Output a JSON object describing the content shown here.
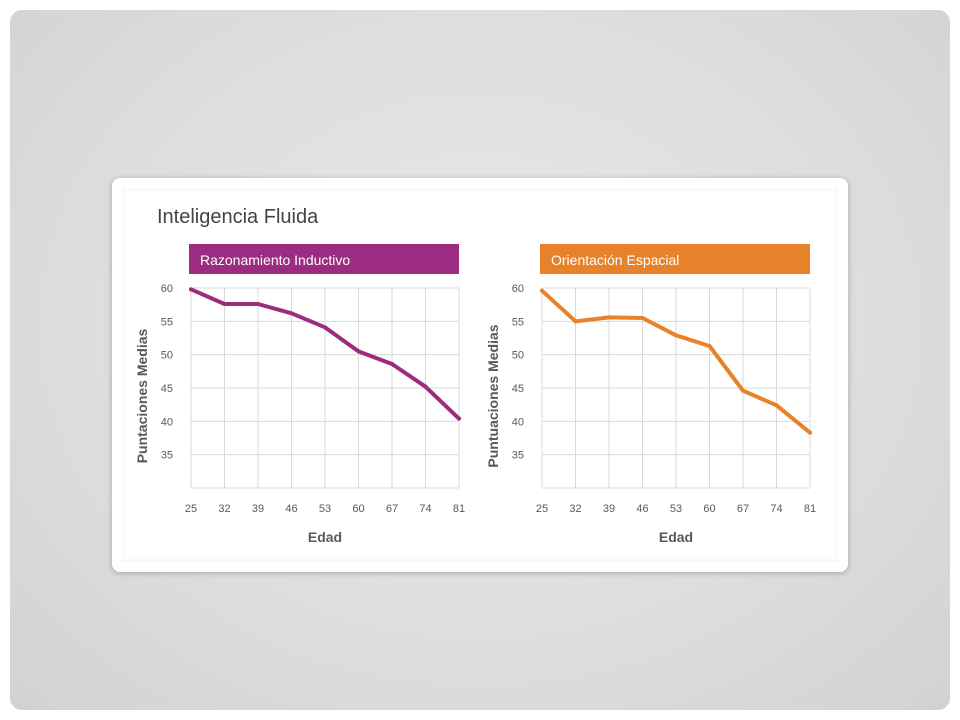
{
  "title": "Inteligencia Fluida",
  "chart_data": [
    {
      "type": "line",
      "title": "Razonamiento Inductivo",
      "xlabel": "Edad",
      "ylabel": "Puntaciones Medias",
      "x": [
        25,
        32,
        39,
        46,
        53,
        60,
        67,
        74,
        81
      ],
      "values": [
        59.8,
        57.6,
        57.6,
        56.2,
        54.1,
        50.5,
        48.6,
        45.2,
        40.4
      ],
      "ylim": [
        30,
        60
      ],
      "yticks": [
        35,
        40,
        45,
        50,
        55,
        60
      ],
      "grid": true,
      "color": "#9b2c7f"
    },
    {
      "type": "line",
      "title": "Orientación Espacial",
      "xlabel": "Edad",
      "ylabel": "Puntuaciones Medias",
      "x": [
        25,
        32,
        39,
        46,
        53,
        60,
        67,
        74,
        81
      ],
      "values": [
        59.6,
        55.0,
        55.6,
        55.5,
        52.9,
        51.3,
        44.6,
        42.4,
        38.3
      ],
      "ylim": [
        30,
        60
      ],
      "yticks": [
        35,
        40,
        45,
        50,
        55,
        60
      ],
      "grid": true,
      "color": "#e8822a"
    }
  ]
}
